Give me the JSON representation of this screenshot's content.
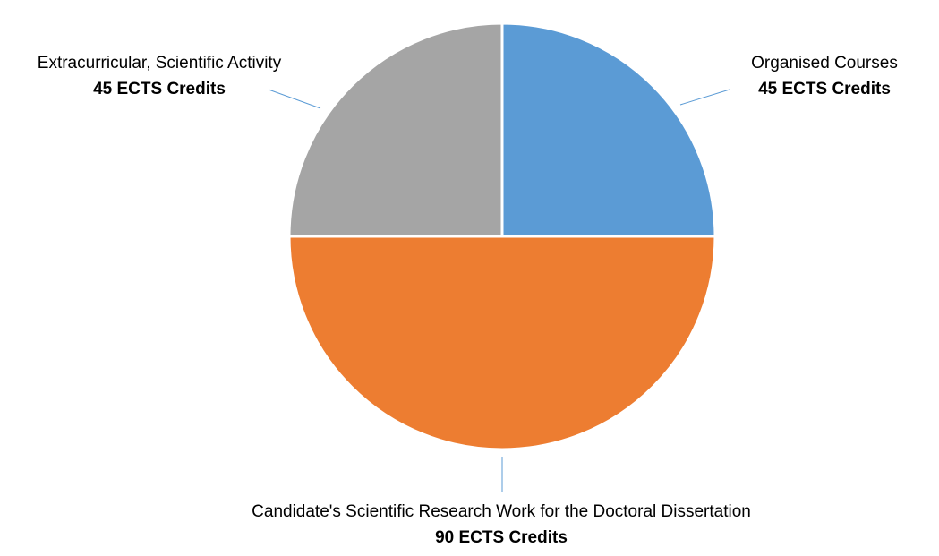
{
  "chart_data": {
    "type": "pie",
    "categories": [
      "Organised Courses",
      "Candidate's Scientific Research Work for the Doctoral Dissertation",
      "Extracurricular, Scientific Activity"
    ],
    "values": [
      45,
      90,
      45
    ],
    "value_labels": [
      "45 ECTS Credits",
      "90 ECTS Credits",
      "45 ECTS Credits"
    ],
    "colors": [
      "#5b9bd5",
      "#ed7d31",
      "#a5a5a5"
    ]
  }
}
